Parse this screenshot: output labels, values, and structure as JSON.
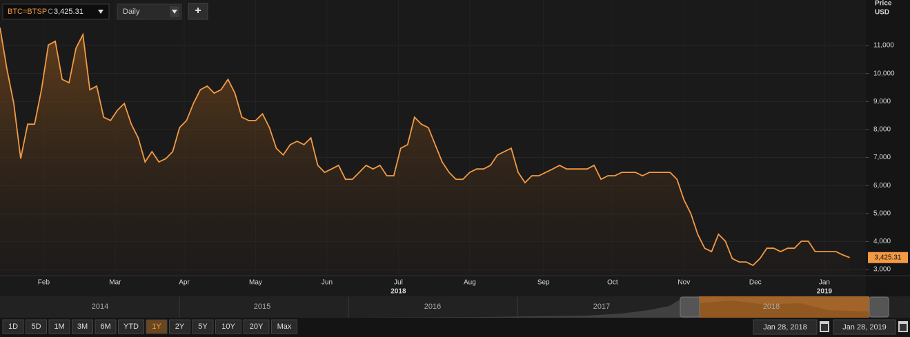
{
  "toolbar": {
    "symbol": "BTC=BTSP",
    "close_prefix": "C",
    "close": "3,425.31",
    "interval": "Daily",
    "add": "+"
  },
  "chart_data": {
    "type": "line",
    "axis_title": [
      "Price",
      "USD"
    ],
    "color": "#f39a45",
    "x": [
      0,
      3,
      6,
      9,
      12,
      15,
      18,
      21,
      24,
      27,
      30,
      33,
      36,
      39,
      42,
      45,
      48,
      51,
      54,
      57,
      60,
      63,
      66,
      69,
      72,
      75,
      78,
      81,
      84,
      87,
      90,
      93,
      96,
      99,
      102,
      105,
      108,
      111,
      114,
      117,
      120,
      123,
      126,
      129,
      132,
      135,
      138,
      141,
      144,
      147,
      150,
      153,
      156,
      159,
      162,
      165,
      168,
      171,
      174,
      177,
      180,
      183,
      186,
      189,
      192,
      195,
      198,
      201,
      204,
      207,
      210,
      213,
      216,
      219,
      222,
      225,
      228,
      231,
      234,
      237,
      240,
      243,
      246,
      249,
      252,
      255,
      258,
      261,
      264,
      267,
      270,
      273,
      276,
      279,
      282,
      285,
      288,
      291,
      294,
      297,
      300,
      303,
      306,
      309,
      312,
      315,
      318,
      321,
      324,
      327,
      330,
      333,
      336,
      339,
      342,
      345,
      348,
      351,
      354,
      357,
      360,
      363,
      366,
      369
    ],
    "values": [
      11640,
      10160,
      8930,
      6960,
      8190,
      8190,
      9420,
      11020,
      11150,
      9790,
      9670,
      10900,
      11390,
      9420,
      9550,
      8440,
      8320,
      8690,
      8930,
      8190,
      7700,
      6840,
      7210,
      6840,
      6960,
      7210,
      8070,
      8320,
      8930,
      9420,
      9550,
      9300,
      9420,
      9790,
      9300,
      8440,
      8320,
      8320,
      8560,
      8070,
      7330,
      7090,
      7460,
      7580,
      7460,
      7700,
      6720,
      6470,
      6590,
      6720,
      6220,
      6220,
      6470,
      6720,
      6590,
      6720,
      6350,
      6350,
      7330,
      7460,
      8440,
      8190,
      8070,
      7460,
      6840,
      6470,
      6220,
      6220,
      6470,
      6590,
      6590,
      6720,
      7090,
      7210,
      7330,
      6470,
      6100,
      6350,
      6350,
      6470,
      6590,
      6720,
      6590,
      6590,
      6590,
      6590,
      6720,
      6220,
      6350,
      6350,
      6470,
      6470,
      6470,
      6350,
      6470,
      6470,
      6470,
      6470,
      6220,
      5490,
      5000,
      4260,
      3760,
      3640,
      4260,
      4010,
      3390,
      3270,
      3270,
      3150,
      3390,
      3760,
      3760,
      3640,
      3760,
      3760,
      4010,
      4010,
      3640,
      3640,
      3640,
      3640,
      3520,
      3425.31
    ],
    "last_value_label": "3,425.31",
    "xlim": [
      0,
      376
    ],
    "xticks": [
      {
        "value": 19,
        "label": "Feb"
      },
      {
        "value": 50,
        "label": "Mar"
      },
      {
        "value": 80,
        "label": "Apr"
      },
      {
        "value": 111,
        "label": "May"
      },
      {
        "value": 142,
        "label": "Jun"
      },
      {
        "value": 173,
        "label": "Jul"
      },
      {
        "value": 204,
        "label": "Aug"
      },
      {
        "value": 236,
        "label": "Sep"
      },
      {
        "value": 266,
        "label": "Oct"
      },
      {
        "value": 297,
        "label": "Nov"
      },
      {
        "value": 328,
        "label": "Dec"
      },
      {
        "value": 358,
        "label": "Jan"
      }
    ],
    "year_labels": [
      {
        "value": 173,
        "label": "2018"
      },
      {
        "value": 358,
        "label": "2019"
      }
    ],
    "ylim": [
      2780,
      12625
    ],
    "yticks": [
      {
        "value": 3000,
        "label": "3,000"
      },
      {
        "value": 4000,
        "label": "4,000"
      },
      {
        "value": 5000,
        "label": "5,000"
      },
      {
        "value": 6000,
        "label": "6,000"
      },
      {
        "value": 7000,
        "label": "7,000"
      },
      {
        "value": 8000,
        "label": "8,000"
      },
      {
        "value": 9000,
        "label": "9,000"
      },
      {
        "value": 10000,
        "label": "10,000"
      },
      {
        "value": 11000,
        "label": "11,000"
      }
    ],
    "grid": true
  },
  "navigator": {
    "years": [
      "2014",
      "2015",
      "2016",
      "2017",
      "2018"
    ]
  },
  "range_buttons": [
    "1D",
    "5D",
    "1M",
    "3M",
    "6M",
    "YTD",
    "1Y",
    "2Y",
    "5Y",
    "10Y",
    "20Y",
    "Max"
  ],
  "active_range": "1Y",
  "date_range": {
    "from": "Jan 28, 2018",
    "to": "Jan 28, 2019"
  }
}
